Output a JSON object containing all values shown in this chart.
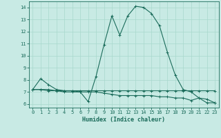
{
  "xlabel": "Humidex (Indice chaleur)",
  "bg_color": "#c8eae4",
  "line_color": "#1a6b5a",
  "grid_color": "#a8d8cc",
  "xlim": [
    -0.5,
    23.5
  ],
  "ylim": [
    5.7,
    14.5
  ],
  "yticks": [
    6,
    7,
    8,
    9,
    10,
    11,
    12,
    13,
    14
  ],
  "xticks": [
    0,
    1,
    2,
    3,
    4,
    5,
    6,
    7,
    8,
    9,
    10,
    11,
    12,
    13,
    14,
    15,
    16,
    17,
    18,
    19,
    20,
    21,
    22,
    23
  ],
  "line1_x": [
    0,
    1,
    2,
    3,
    4,
    5,
    6,
    7,
    8,
    9,
    10,
    11,
    12,
    13,
    14,
    15,
    16,
    17,
    18,
    19,
    20,
    21,
    22,
    23
  ],
  "line1_y": [
    7.2,
    8.1,
    7.6,
    7.2,
    7.1,
    7.1,
    7.0,
    6.2,
    8.3,
    10.9,
    13.3,
    11.7,
    13.3,
    14.1,
    14.0,
    13.5,
    12.5,
    10.3,
    8.4,
    7.2,
    7.0,
    6.5,
    6.4,
    6.1
  ],
  "line2_x": [
    0,
    1,
    2,
    3,
    4,
    5,
    6,
    7,
    8,
    9,
    10,
    11,
    12,
    13,
    14,
    15,
    16,
    17,
    18,
    19,
    20,
    21,
    22,
    23
  ],
  "line2_y": [
    7.2,
    7.2,
    7.2,
    7.1,
    7.1,
    7.1,
    7.1,
    7.1,
    7.1,
    7.1,
    7.1,
    7.1,
    7.1,
    7.1,
    7.1,
    7.1,
    7.1,
    7.1,
    7.1,
    7.1,
    7.1,
    7.1,
    7.1,
    7.1
  ],
  "line3_x": [
    0,
    1,
    2,
    3,
    4,
    5,
    6,
    7,
    8,
    9,
    10,
    11,
    12,
    13,
    14,
    15,
    16,
    17,
    18,
    19,
    20,
    21,
    22,
    23
  ],
  "line3_y": [
    7.2,
    7.2,
    7.1,
    7.1,
    7.0,
    7.0,
    7.0,
    7.0,
    7.0,
    6.9,
    6.8,
    6.7,
    6.7,
    6.7,
    6.7,
    6.7,
    6.6,
    6.6,
    6.5,
    6.5,
    6.3,
    6.5,
    6.1,
    6.1
  ],
  "markersize": 3,
  "linewidth": 0.8
}
